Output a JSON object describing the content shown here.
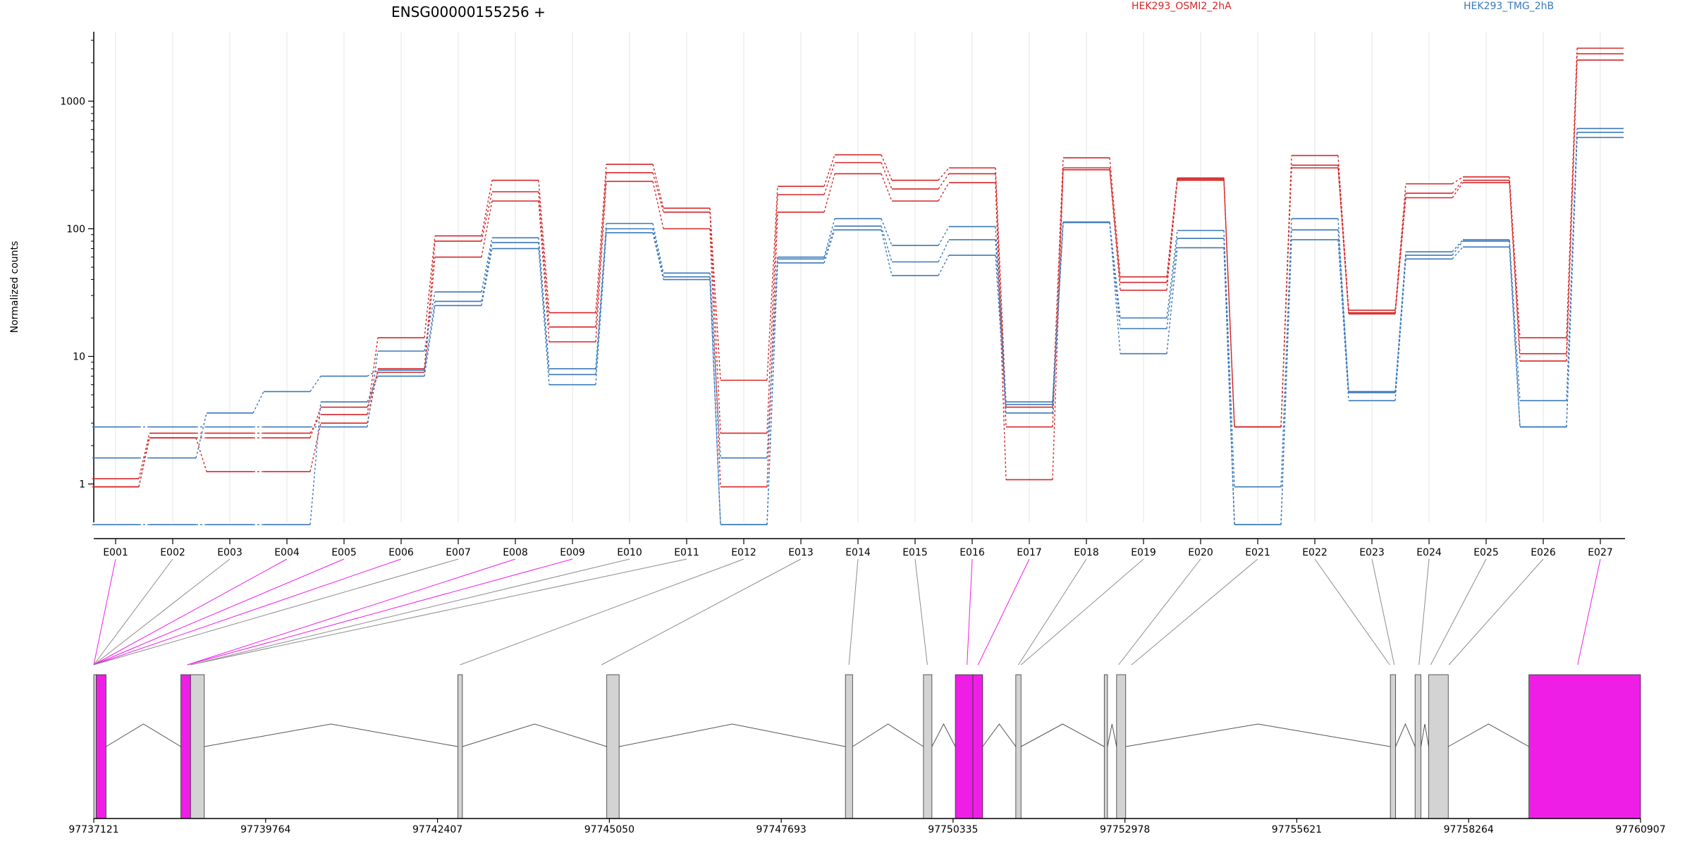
{
  "chart_data": {
    "type": "line",
    "title": "ENSG00000155256 +",
    "ylabel": "Normalized counts",
    "yscale": "log",
    "ylim": [
      0.5,
      3500
    ],
    "yticks": [
      "1",
      "10",
      "100",
      "1000"
    ],
    "categories": [
      "E001",
      "E002",
      "E003",
      "E004",
      "E005",
      "E006",
      "E007",
      "E008",
      "E009",
      "E010",
      "E011",
      "E012",
      "E013",
      "E014",
      "E015",
      "E016",
      "E017",
      "E018",
      "E019",
      "E020",
      "E021",
      "E022",
      "E023",
      "E024",
      "E025",
      "E026",
      "E027"
    ],
    "legend": [
      {
        "name": "HEK293_OSMI2_2hA",
        "color": "#d62728"
      },
      {
        "name": "HEK293_TMG_2hB",
        "color": "#3a78b8"
      }
    ],
    "series": [
      {
        "group": 0,
        "values": [
          1.1,
          2.5,
          2.5,
          2.5,
          3.5,
          14,
          88,
          240,
          22,
          320,
          145,
          6.5,
          215,
          380,
          240,
          300,
          4.0,
          360,
          42,
          250,
          2.8,
          375,
          23,
          225,
          255,
          14,
          2600
        ]
      },
      {
        "group": 0,
        "values": [
          0.95,
          2.3,
          1.25,
          1.25,
          3.0,
          8,
          80,
          195,
          17,
          275,
          135,
          2.5,
          185,
          330,
          205,
          270,
          2.8,
          300,
          38,
          245,
          2.8,
          315,
          22,
          190,
          240,
          10.5,
          2350
        ]
      },
      {
        "group": 0,
        "values": [
          0.95,
          2.3,
          2.3,
          2.3,
          4.0,
          7.5,
          60,
          165,
          13,
          235,
          100,
          0.95,
          135,
          270,
          165,
          230,
          1.08,
          290,
          33,
          240,
          2.8,
          300,
          21.5,
          175,
          230,
          9.2,
          2100
        ]
      },
      {
        "group": 1,
        "values": [
          2.8,
          2.8,
          2.8,
          2.8,
          2.8,
          11,
          32,
          85,
          8,
          110,
          45,
          1.6,
          60,
          120,
          74,
          104,
          4.4,
          112,
          20,
          97,
          0.95,
          120,
          5.3,
          66,
          82,
          4.5,
          610
        ]
      },
      {
        "group": 1,
        "values": [
          1.6,
          1.6,
          3.6,
          5.3,
          7.0,
          7.8,
          27,
          78,
          7.2,
          100,
          42,
          0.48,
          58,
          105,
          55,
          82,
          4.2,
          112,
          16.5,
          84,
          0.48,
          98,
          5.2,
          62,
          80,
          2.8,
          570
        ]
      },
      {
        "group": 1,
        "values": [
          0.48,
          0.48,
          0.48,
          0.48,
          4.4,
          7.0,
          25,
          70,
          6.0,
          93,
          40,
          0.48,
          54,
          98,
          43,
          62,
          3.6,
          113,
          10.5,
          71,
          0.48,
          82,
          4.5,
          58,
          72,
          2.8,
          520
        ]
      }
    ],
    "genome": {
      "ticks": [
        "97737121",
        "97739764",
        "97742407",
        "97745050",
        "97747693",
        "97750335",
        "97752978",
        "97755621",
        "97758264",
        "97760907"
      ],
      "start": 97737121,
      "end": 97760907,
      "feature_colors": {
        "highlight": "#ee1ee6",
        "exon": "#d3d3d3"
      },
      "exons": [
        {
          "s": 97737121,
          "e": 97737160,
          "hl": false
        },
        {
          "s": 97737160,
          "e": 97737310,
          "hl": true
        },
        {
          "s": 97738460,
          "e": 97738610,
          "hl": true
        },
        {
          "s": 97738610,
          "e": 97738820,
          "hl": false
        },
        {
          "s": 97742720,
          "e": 97742790,
          "hl": false
        },
        {
          "s": 97745010,
          "e": 97745200,
          "hl": false
        },
        {
          "s": 97748680,
          "e": 97748790,
          "hl": false
        },
        {
          "s": 97749880,
          "e": 97750010,
          "hl": false
        },
        {
          "s": 97750370,
          "e": 97750640,
          "hl": true
        },
        {
          "s": 97750640,
          "e": 97750790,
          "hl": true
        },
        {
          "s": 97751300,
          "e": 97751380,
          "hl": false
        },
        {
          "s": 97752660,
          "e": 97752710,
          "hl": false
        },
        {
          "s": 97752850,
          "e": 97752990,
          "hl": false
        },
        {
          "s": 97757060,
          "e": 97757140,
          "hl": false
        },
        {
          "s": 97757440,
          "e": 97757530,
          "hl": false
        },
        {
          "s": 97757650,
          "e": 97757950,
          "hl": false
        },
        {
          "s": 97759190,
          "e": 97760907,
          "hl": true
        }
      ],
      "links": [
        {
          "g": 97737121,
          "hl": true
        },
        {
          "g": 97737121,
          "hl": false
        },
        {
          "g": 97737121,
          "hl": false
        },
        {
          "g": 97737121,
          "hl": true
        },
        {
          "g": 97737121,
          "hl": true
        },
        {
          "g": 97737121,
          "hl": true
        },
        {
          "g": 97737121,
          "hl": false
        },
        {
          "g": 97738560,
          "hl": true
        },
        {
          "g": 97738560,
          "hl": true
        },
        {
          "g": 97738610,
          "hl": false
        },
        {
          "g": 97738610,
          "hl": false
        },
        {
          "g": 97742755,
          "hl": false
        },
        {
          "g": 97744930,
          "hl": false
        },
        {
          "g": 97748734,
          "hl": false
        },
        {
          "g": 97749940,
          "hl": false
        },
        {
          "g": 97750550,
          "hl": true
        },
        {
          "g": 97750720,
          "hl": true
        },
        {
          "g": 97751340,
          "hl": false
        },
        {
          "g": 97751380,
          "hl": false
        },
        {
          "g": 97752880,
          "hl": false
        },
        {
          "g": 97753080,
          "hl": false
        },
        {
          "g": 97757050,
          "hl": false
        },
        {
          "g": 97757120,
          "hl": false
        },
        {
          "g": 97757500,
          "hl": false
        },
        {
          "g": 97757680,
          "hl": false
        },
        {
          "g": 97757960,
          "hl": false
        },
        {
          "g": 97759940,
          "hl": true
        }
      ]
    }
  }
}
